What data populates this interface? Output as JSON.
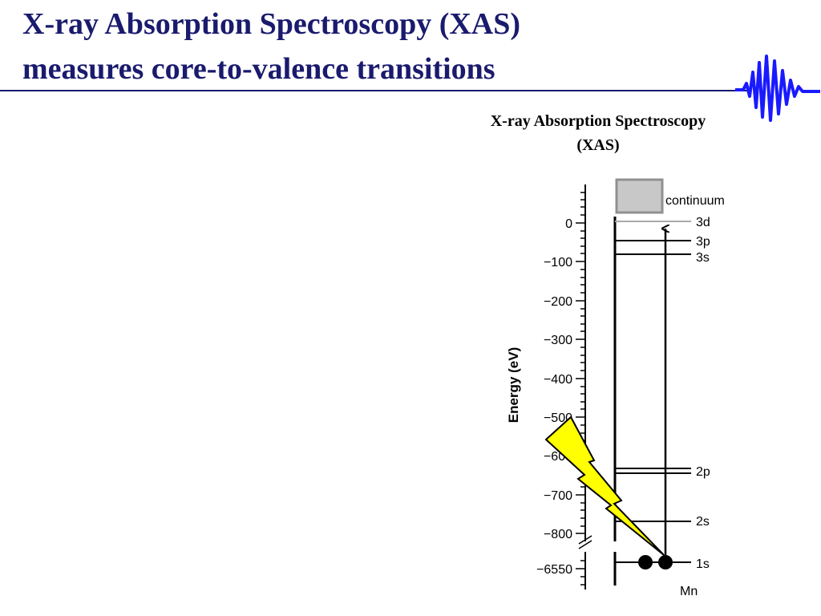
{
  "slide": {
    "title_line1": "X-ray Absorption Spectroscopy (XAS)",
    "title_line2": "measures core-to-valence transitions",
    "accent_color": "#1a1a6e",
    "logo_icon": "xray-wave-logo-icon"
  },
  "diagram": {
    "heading_line1": "X-ray Absorption Spectroscopy",
    "heading_line2": "(XAS)",
    "axis_label": "Energy (eV)",
    "ticks": [
      "0",
      "−100",
      "−200",
      "−300",
      "−400",
      "−500",
      "−600",
      "−700",
      "−800",
      "−6550"
    ],
    "levels": {
      "continuum": "continuum",
      "3d": "3d",
      "3p": "3p",
      "3s": "3s",
      "2p": "2p",
      "2s": "2s",
      "1s": "1s"
    },
    "element": "Mn",
    "xray_icon": "lightning-bolt-icon",
    "bolt_color": "#ffff00"
  }
}
